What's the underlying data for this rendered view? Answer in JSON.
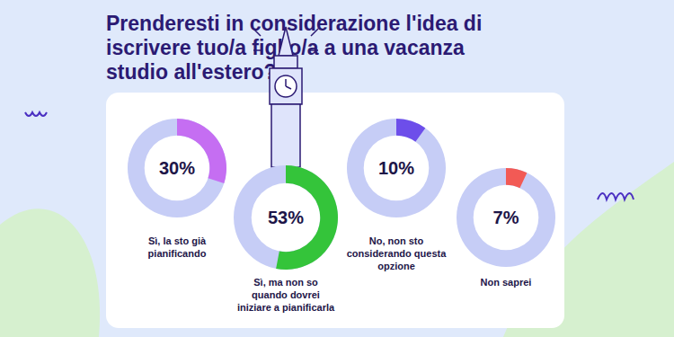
{
  "chart_data": {
    "type": "pie",
    "title": "Prenderesti in considerazione l'idea di iscrivere tuo/a figlio/a a una vacanza studio all'estero?",
    "categories": [
      "Sì, la sto già pianificando",
      "Sì, ma non so quando dovrei iniziare a pianificarla",
      "No, non sto considerando questa opzione",
      "Non saprei"
    ],
    "values": [
      30,
      53,
      10,
      7
    ],
    "value_labels": [
      "30%",
      "53%",
      "10%",
      "7%"
    ],
    "colors": [
      "#c56ef2",
      "#34c43a",
      "#6d4eea",
      "#f25a55"
    ],
    "data_labels": true
  }
}
